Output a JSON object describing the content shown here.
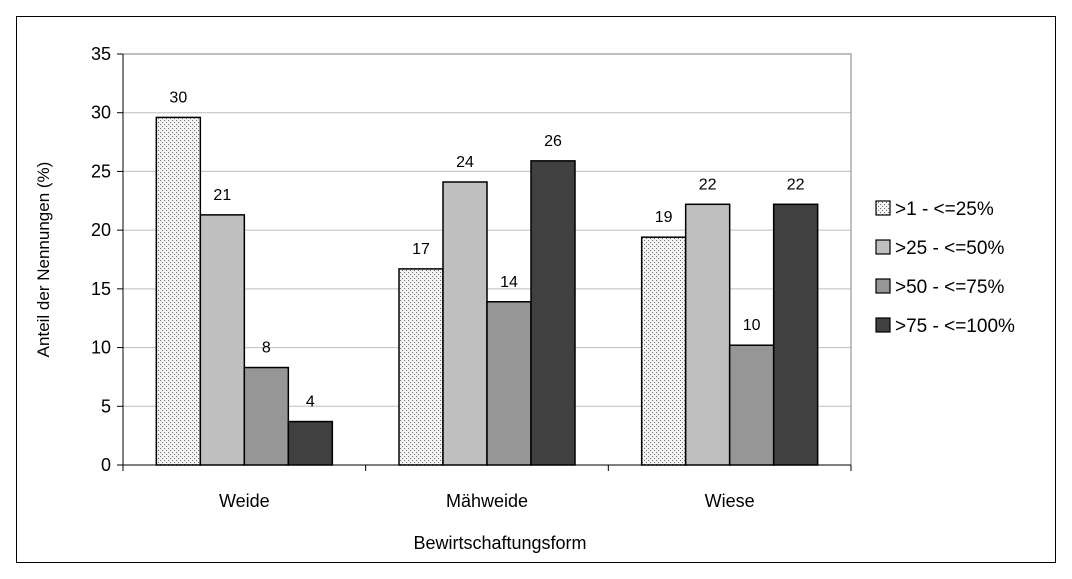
{
  "chart_data": {
    "type": "bar",
    "title": "",
    "xlabel": "Bewirtschaftungsform",
    "ylabel": "Anteil der Nennungen (%)",
    "ylim": [
      0,
      35
    ],
    "yticks": [
      0,
      5,
      10,
      15,
      20,
      25,
      30,
      35
    ],
    "categories": [
      "Weide",
      "Mähweide",
      "Wiese"
    ],
    "series": [
      {
        "name": ">1 - <=25%",
        "values": [
          29.6,
          16.7,
          19.4
        ],
        "labels": [
          "30",
          "17",
          "19"
        ],
        "color": "#ececec",
        "pattern": "dotted"
      },
      {
        "name": ">25 - <=50%",
        "values": [
          21.3,
          24.1,
          22.2
        ],
        "labels": [
          "21",
          "24",
          "22"
        ],
        "color": "#c0c0c0"
      },
      {
        "name": ">50 - <=75%",
        "values": [
          8.3,
          13.9,
          10.2
        ],
        "labels": [
          "8",
          "14",
          "10"
        ],
        "color": "#969696"
      },
      {
        "name": ">75 - <=100%",
        "values": [
          3.7,
          25.9,
          22.2
        ],
        "labels": [
          "4",
          "26",
          "22"
        ],
        "color": "#404040"
      }
    ],
    "grid": "horizontal",
    "legend": "right"
  }
}
